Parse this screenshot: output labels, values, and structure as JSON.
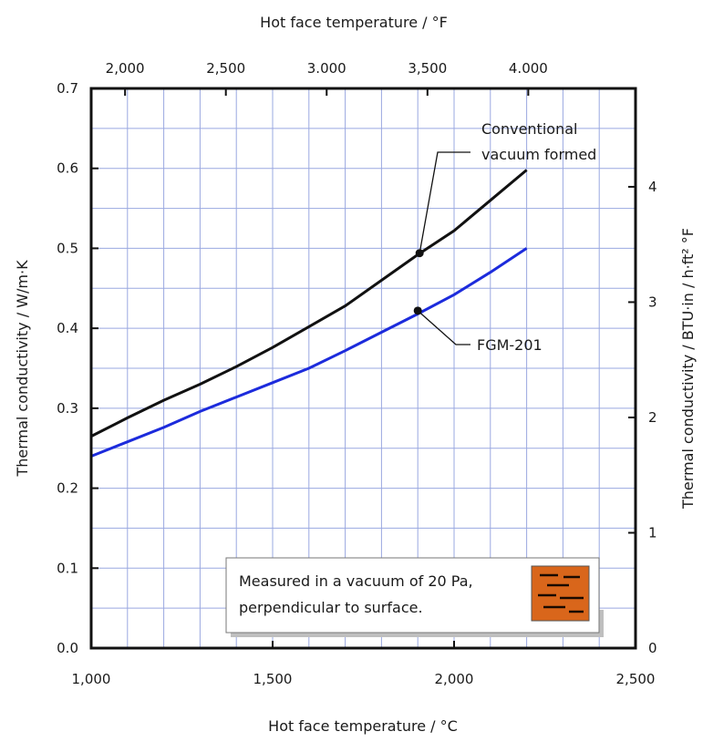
{
  "chart_data": {
    "type": "line",
    "x_bottom_label": "Hot face temperature  /  °C",
    "x_top_label": "Hot face temperature  /  °F",
    "y_left_label": "Thermal conductivity  /  W/m·K",
    "y_right_label": "Thermal conductivity  /  BTU·in / h·ft² °F",
    "xlim": [
      1000,
      2500
    ],
    "ylim": [
      0,
      0.7
    ],
    "x_ticks": [
      "1,000",
      "1,500",
      "2,000",
      "2,500"
    ],
    "x_tick_values": [
      1000,
      1500,
      2000,
      2500
    ],
    "y_ticks": [
      "0.0",
      "0.1",
      "0.2",
      "0.3",
      "0.4",
      "0.5",
      "0.6",
      "0.7"
    ],
    "y_tick_values": [
      0,
      0.1,
      0.2,
      0.3,
      0.4,
      0.5,
      0.6,
      0.7
    ],
    "top_ticks": [
      "2,000",
      "2,500",
      "3.000",
      "3,500",
      "4.000"
    ],
    "top_tick_values_f": [
      2000,
      2500,
      3000,
      3500,
      4000
    ],
    "right_ticks": [
      "0",
      "1",
      "2",
      "3",
      "4"
    ],
    "right_tick_values": [
      0,
      1,
      2,
      3,
      4
    ],
    "right_unit_per_left": 6.933,
    "grid": true,
    "series": [
      {
        "name": "Conventional vacuum formed",
        "color": "#111111",
        "x": [
          1000,
          1100,
          1200,
          1300,
          1400,
          1500,
          1600,
          1700,
          1800,
          1900,
          2000,
          2100,
          2200
        ],
        "y": [
          0.265,
          0.288,
          0.31,
          0.33,
          0.352,
          0.376,
          0.402,
          0.428,
          0.46,
          0.492,
          0.522,
          0.56,
          0.598
        ]
      },
      {
        "name": "FGM-201",
        "color": "#1c2bdc",
        "x": [
          1000,
          1100,
          1200,
          1300,
          1400,
          1500,
          1600,
          1700,
          1800,
          1900,
          2000,
          2100,
          2200
        ],
        "y": [
          0.24,
          0.258,
          0.276,
          0.296,
          0.314,
          0.332,
          0.35,
          0.372,
          0.395,
          0.418,
          0.442,
          0.47,
          0.5
        ]
      }
    ],
    "annotations": [
      {
        "name": "conventional",
        "lines": [
          "Conventional",
          "vacuum formed"
        ],
        "point": [
          1905,
          0.494
        ]
      },
      {
        "name": "fgm",
        "lines": [
          "FGM-201"
        ],
        "point": [
          1900,
          0.422
        ]
      }
    ],
    "note": {
      "lines": [
        "Measured in a vacuum of 20 Pa,",
        "perpendicular to surface."
      ],
      "swatch_color": "#d9661b"
    }
  }
}
